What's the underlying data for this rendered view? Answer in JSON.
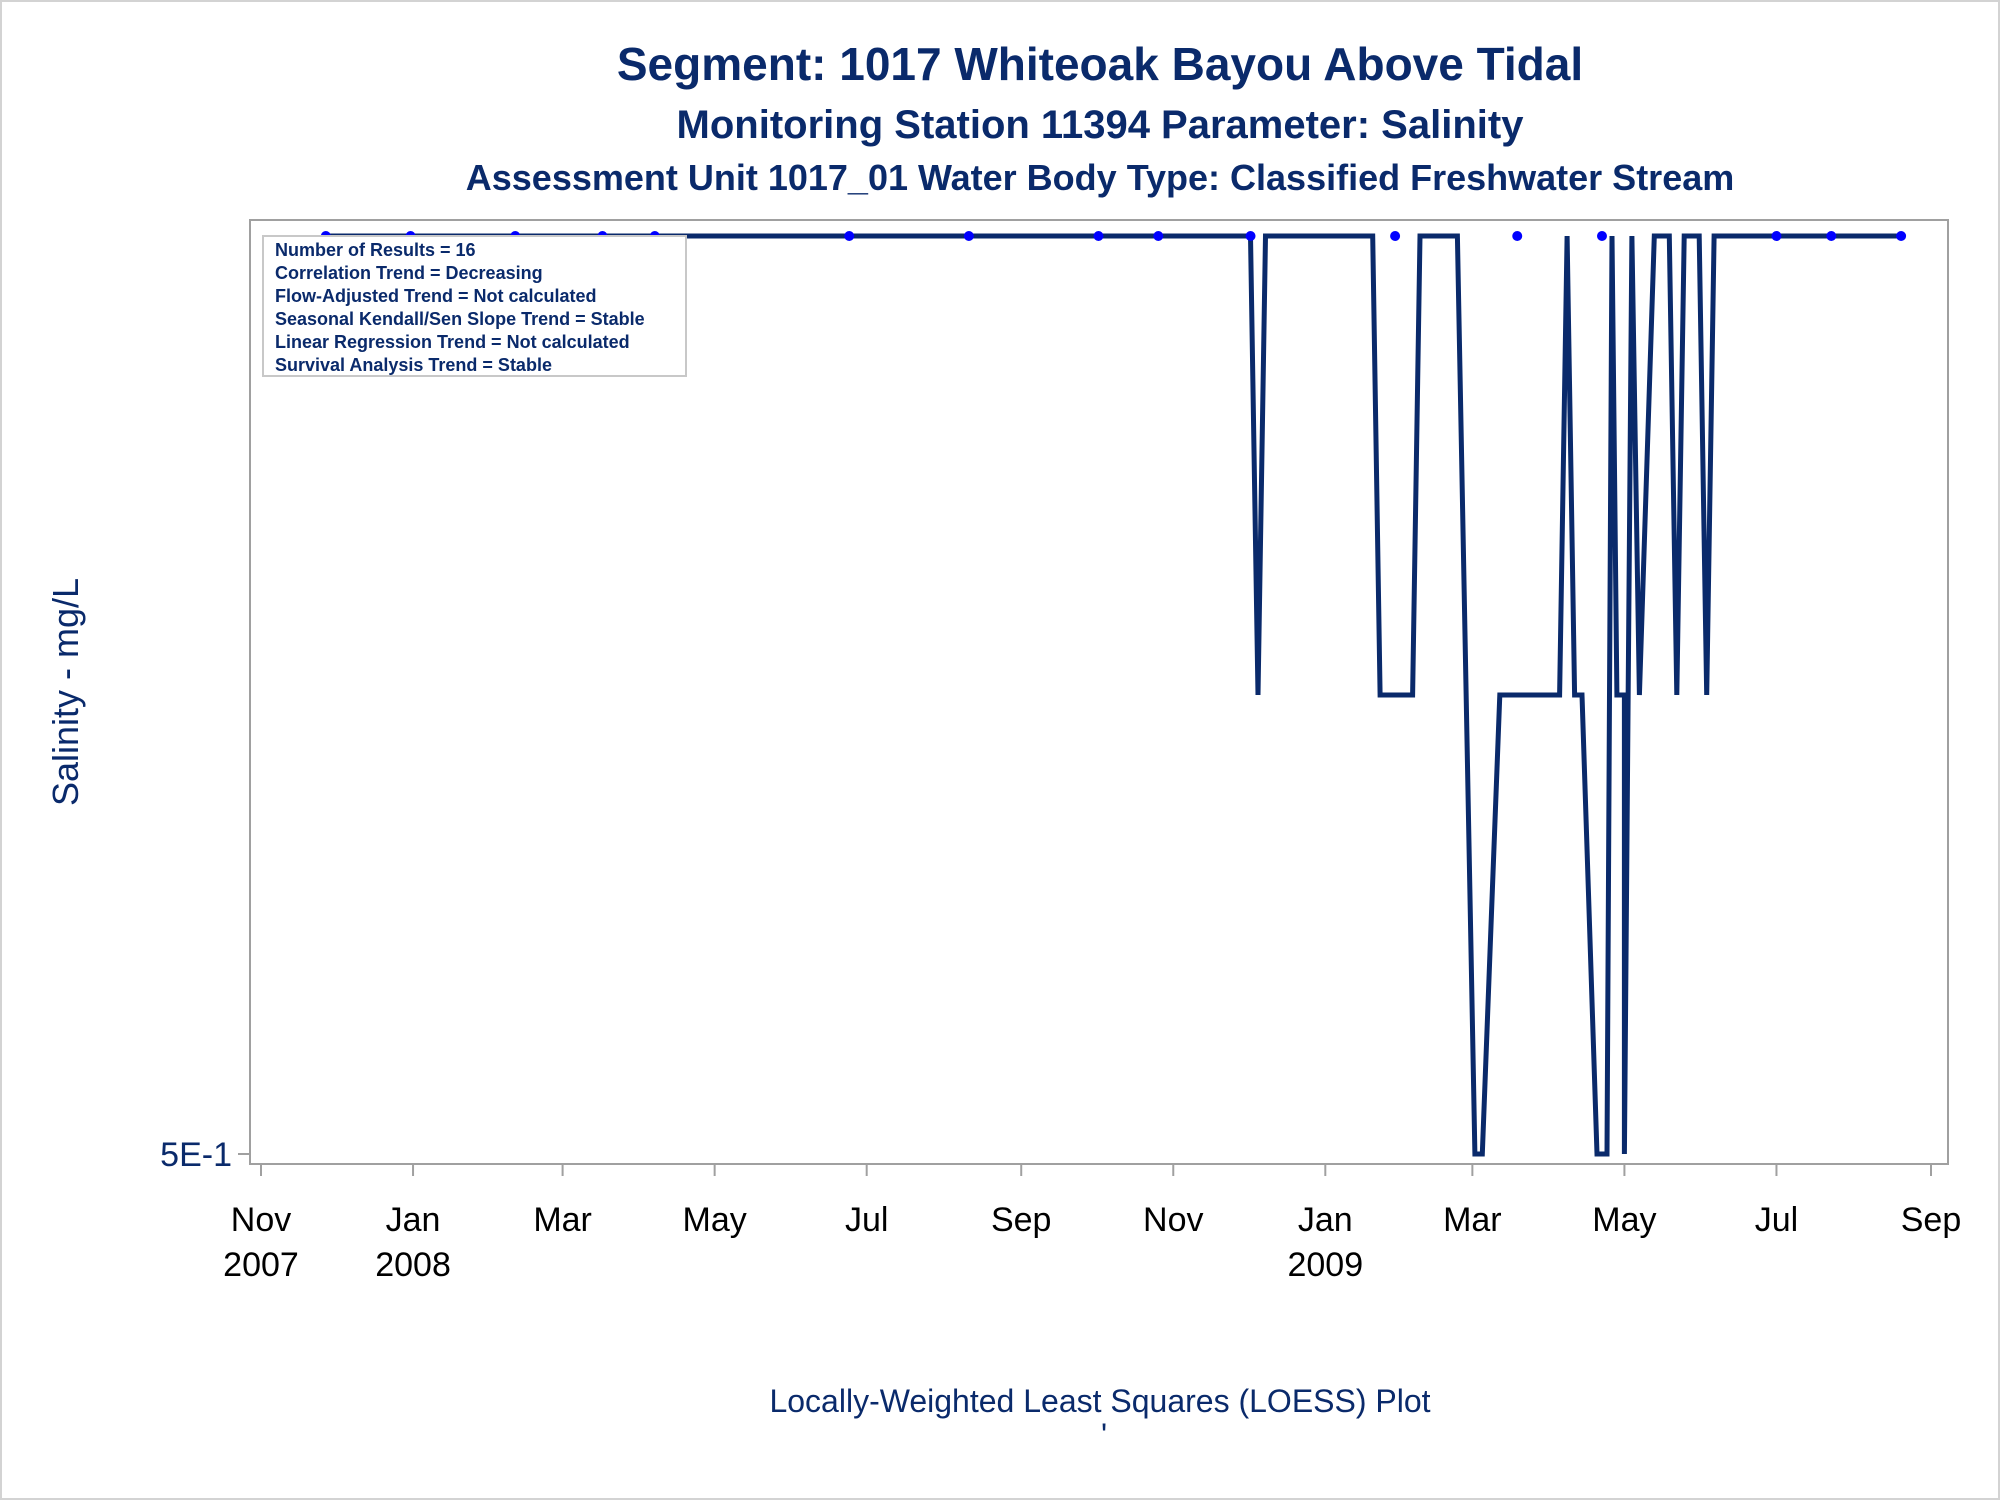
{
  "titles": {
    "line1": "Segment: 1017  Whiteoak Bayou Above Tidal",
    "line2": "Monitoring Station 11394 Parameter: Salinity",
    "line3": "Assessment Unit 1017_01   Water Body Type: Classified Freshwater Stream"
  },
  "footnote": "Locally-Weighted Least Squares (LOESS) Plot",
  "footnote2": "'",
  "stats": [
    "Number of Results = 16",
    "Correlation Trend = Decreasing",
    "Flow-Adjusted Trend = Not calculated",
    "Seasonal Kendall/Sen Slope Trend = Stable",
    "Linear Regression Trend = Not calculated",
    "Survival Analysis Trend = Stable"
  ],
  "colors": {
    "line": "#0a2a6b",
    "marker": "#0000ff",
    "axis": "#a0a0a0",
    "text": "#0a2a6b"
  },
  "chart_data": {
    "type": "line",
    "title": "Segment: 1017  Whiteoak Bayou Above Tidal",
    "xlabel": "",
    "ylabel": "Salinity - mg/L",
    "y_ticks": [
      {
        "value": 0.5,
        "label": "5E-1"
      }
    ],
    "ylim": [
      0.5,
      1.5
    ],
    "xlim": [
      "2007-11-01",
      "2009-09-01"
    ],
    "x_ticks": [
      {
        "date": "2007-11-01",
        "label": "Nov",
        "year": "2007"
      },
      {
        "date": "2008-01-01",
        "label": "Jan",
        "year": "2008"
      },
      {
        "date": "2008-03-01",
        "label": "Mar",
        "year": ""
      },
      {
        "date": "2008-05-01",
        "label": "May",
        "year": ""
      },
      {
        "date": "2008-07-01",
        "label": "Jul",
        "year": ""
      },
      {
        "date": "2008-09-01",
        "label": "Sep",
        "year": ""
      },
      {
        "date": "2008-11-01",
        "label": "Nov",
        "year": ""
      },
      {
        "date": "2009-01-01",
        "label": "Jan",
        "year": "2009"
      },
      {
        "date": "2009-03-01",
        "label": "Mar",
        "year": ""
      },
      {
        "date": "2009-05-01",
        "label": "May",
        "year": ""
      },
      {
        "date": "2009-07-01",
        "label": "Jul",
        "year": ""
      },
      {
        "date": "2009-09-01",
        "label": "Sep",
        "year": ""
      }
    ],
    "observations": [
      {
        "x": "2007-11-27",
        "y": 1.5
      },
      {
        "x": "2007-12-31",
        "y": 1.5
      },
      {
        "x": "2008-02-11",
        "y": 1.5
      },
      {
        "x": "2008-03-17",
        "y": 1.5
      },
      {
        "x": "2008-04-07",
        "y": 1.5
      },
      {
        "x": "2008-06-24",
        "y": 1.5
      },
      {
        "x": "2008-08-11",
        "y": 1.5
      },
      {
        "x": "2008-10-02",
        "y": 1.5
      },
      {
        "x": "2008-10-26",
        "y": 1.5
      },
      {
        "x": "2008-12-02",
        "y": 1.5
      },
      {
        "x": "2009-01-29",
        "y": 1.5
      },
      {
        "x": "2009-03-19",
        "y": 1.5
      },
      {
        "x": "2009-04-22",
        "y": 1.5
      },
      {
        "x": "2009-07-01",
        "y": 1.5
      },
      {
        "x": "2009-07-23",
        "y": 1.5
      },
      {
        "x": "2009-08-20",
        "y": 1.5
      }
    ],
    "loess": [
      {
        "x": "2007-11-27",
        "y": 1.5
      },
      {
        "x": "2008-12-02",
        "y": 1.5
      },
      {
        "x": "2008-12-05",
        "y": 1.0
      },
      {
        "x": "2008-12-08",
        "y": 1.5
      },
      {
        "x": "2009-01-20",
        "y": 1.5
      },
      {
        "x": "2009-01-23",
        "y": 1.0
      },
      {
        "x": "2009-02-05",
        "y": 1.0
      },
      {
        "x": "2009-02-08",
        "y": 1.5
      },
      {
        "x": "2009-02-23",
        "y": 1.5
      },
      {
        "x": "2009-03-02",
        "y": 0.5
      },
      {
        "x": "2009-03-05",
        "y": 0.5
      },
      {
        "x": "2009-03-12",
        "y": 1.0
      },
      {
        "x": "2009-04-05",
        "y": 1.0
      },
      {
        "x": "2009-04-08",
        "y": 1.5
      },
      {
        "x": "2009-04-11",
        "y": 1.0
      },
      {
        "x": "2009-04-14",
        "y": 1.0
      },
      {
        "x": "2009-04-20",
        "y": 0.5
      },
      {
        "x": "2009-04-24",
        "y": 0.5
      },
      {
        "x": "2009-04-26",
        "y": 1.5
      },
      {
        "x": "2009-04-28",
        "y": 1.0
      },
      {
        "x": "2009-05-01",
        "y": 1.0
      },
      {
        "x": "2009-05-01",
        "y": 0.5
      },
      {
        "x": "2009-05-04",
        "y": 1.5
      },
      {
        "x": "2009-05-07",
        "y": 1.0
      },
      {
        "x": "2009-05-13",
        "y": 1.5
      },
      {
        "x": "2009-05-19",
        "y": 1.5
      },
      {
        "x": "2009-05-22",
        "y": 1.0
      },
      {
        "x": "2009-05-25",
        "y": 1.5
      },
      {
        "x": "2009-05-31",
        "y": 1.5
      },
      {
        "x": "2009-06-03",
        "y": 1.0
      },
      {
        "x": "2009-06-06",
        "y": 1.5
      },
      {
        "x": "2009-08-20",
        "y": 1.5
      }
    ]
  }
}
